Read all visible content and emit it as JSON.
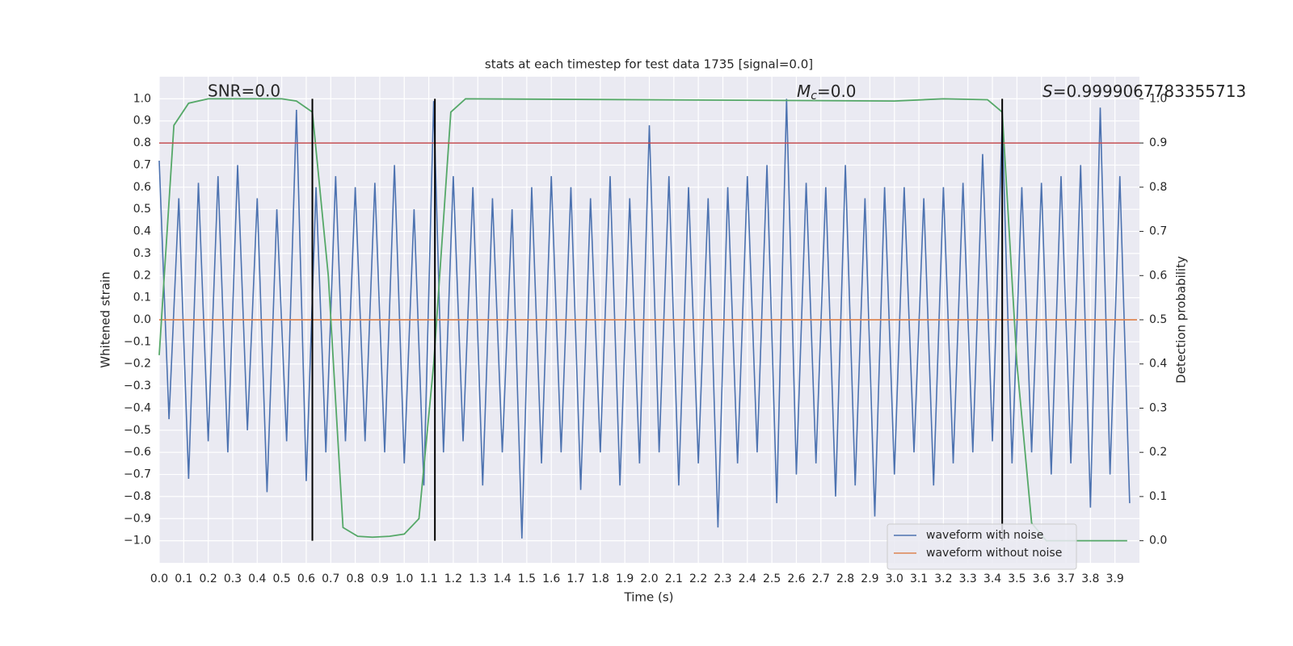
{
  "chart_data": {
    "type": "line",
    "title": "stats at each timestep for test data 1735 [signal=0.0]",
    "xlabel": "Time (s)",
    "ylabel": "Whitened strain",
    "y2label": "Detection probability",
    "xlim": [
      0,
      4
    ],
    "ylim": [
      -1.1,
      1.1
    ],
    "y2lim": [
      -0.05,
      1.05
    ],
    "xticks": [
      {
        "value": 0,
        "label": "0.0"
      },
      0.1,
      0.2,
      0.3,
      0.4,
      0.5,
      0.6,
      0.7,
      0.8,
      0.9,
      {
        "value": 1,
        "label": "1.0"
      },
      1.1,
      1.2,
      1.3,
      1.4,
      1.5,
      1.6,
      1.7,
      1.8,
      1.9,
      {
        "value": 2,
        "label": "2.0"
      },
      2.1,
      2.2,
      2.3,
      2.4,
      2.5,
      2.6,
      2.7,
      2.8,
      2.9,
      {
        "value": 3,
        "label": "3.0"
      },
      3.1,
      3.2,
      3.3,
      3.4,
      3.5,
      3.6,
      3.7,
      3.8,
      3.9
    ],
    "yticks": [
      {
        "value": -1,
        "label": "−1.0"
      },
      {
        "value": -0.9,
        "label": "−0.9"
      },
      {
        "value": -0.8,
        "label": "−0.8"
      },
      {
        "value": -0.7,
        "label": "−0.7"
      },
      {
        "value": -0.6,
        "label": "−0.6"
      },
      {
        "value": -0.5,
        "label": "−0.5"
      },
      {
        "value": -0.4,
        "label": "−0.4"
      },
      {
        "value": -0.3,
        "label": "−0.3"
      },
      {
        "value": -0.2,
        "label": "−0.2"
      },
      {
        "value": -0.1,
        "label": "−0.1"
      },
      {
        "value": 0,
        "label": "0.0"
      },
      0.1,
      0.2,
      0.3,
      0.4,
      0.5,
      0.6,
      0.7,
      0.8,
      0.9,
      {
        "value": 1,
        "label": "1.0"
      }
    ],
    "y2ticks": [
      {
        "value": 0,
        "label": "0.0"
      },
      0.1,
      0.2,
      0.3,
      0.4,
      0.5,
      0.6,
      0.7,
      0.8,
      0.9,
      {
        "value": 1,
        "label": "1.0"
      }
    ],
    "grid": true,
    "legend": "lower right",
    "series": [
      {
        "name": "waveform with noise",
        "color": "#4c72b0",
        "x": [
          0,
          0.04,
          0.08,
          0.12,
          0.16,
          0.2,
          0.24,
          0.28,
          0.32,
          0.36,
          0.4,
          0.44,
          0.48,
          0.52,
          0.56,
          0.6,
          0.64,
          0.68,
          0.72,
          0.76,
          0.8,
          0.84,
          0.88,
          0.92,
          0.96,
          1.0,
          1.04,
          1.08,
          1.12,
          1.16,
          1.2,
          1.24,
          1.28,
          1.32,
          1.36,
          1.4,
          1.44,
          1.48,
          1.52,
          1.56,
          1.6,
          1.64,
          1.68,
          1.72,
          1.76,
          1.8,
          1.84,
          1.88,
          1.92,
          1.96,
          2.0,
          2.04,
          2.08,
          2.12,
          2.16,
          2.2,
          2.24,
          2.28,
          2.32,
          2.36,
          2.4,
          2.44,
          2.48,
          2.52,
          2.56,
          2.6,
          2.64,
          2.68,
          2.72,
          2.76,
          2.8,
          2.84,
          2.88,
          2.92,
          2.96,
          3.0,
          3.04,
          3.08,
          3.12,
          3.16,
          3.2,
          3.24,
          3.28,
          3.32,
          3.36,
          3.4,
          3.44,
          3.48,
          3.52,
          3.56,
          3.6,
          3.64,
          3.68,
          3.72,
          3.76,
          3.8,
          3.84,
          3.88,
          3.92,
          3.96
        ],
        "values": [
          0.72,
          -0.45,
          0.55,
          -0.72,
          0.62,
          -0.55,
          0.65,
          -0.6,
          0.7,
          -0.5,
          0.55,
          -0.78,
          0.5,
          -0.55,
          0.95,
          -0.73,
          0.6,
          -0.6,
          0.65,
          -0.55,
          0.6,
          -0.55,
          0.62,
          -0.6,
          0.7,
          -0.65,
          0.5,
          -0.75,
          0.99,
          -0.6,
          0.65,
          -0.55,
          0.6,
          -0.75,
          0.55,
          -0.6,
          0.5,
          -0.99,
          0.6,
          -0.65,
          0.65,
          -0.6,
          0.6,
          -0.77,
          0.55,
          -0.6,
          0.65,
          -0.75,
          0.55,
          -0.65,
          0.88,
          -0.6,
          0.65,
          -0.75,
          0.6,
          -0.65,
          0.55,
          -0.94,
          0.6,
          -0.65,
          0.65,
          -0.6,
          0.7,
          -0.83,
          1.0,
          -0.7,
          0.62,
          -0.65,
          0.6,
          -0.8,
          0.7,
          -0.75,
          0.55,
          -0.89,
          0.6,
          -0.7,
          0.6,
          -0.6,
          0.55,
          -0.75,
          0.6,
          -0.65,
          0.62,
          -0.6,
          0.75,
          -0.55,
          0.9,
          -0.65,
          0.6,
          -0.6,
          0.62,
          -0.7,
          0.65,
          -0.65,
          0.7,
          -0.85,
          0.96,
          -0.7,
          0.65,
          -0.83
        ]
      },
      {
        "name": "waveform without noise",
        "color": "#dd8452",
        "x": [
          0,
          3.99
        ],
        "values": [
          0,
          0
        ]
      },
      {
        "color": "#55a868",
        "axis": "y2",
        "x": [
          0,
          0.06,
          0.12,
          0.2,
          0.5,
          0.56,
          0.625,
          0.69,
          0.75,
          0.81,
          0.87,
          0.94,
          1.0,
          1.06,
          1.12,
          1.19,
          1.25,
          3.0,
          3.2,
          3.38,
          3.44,
          3.5,
          3.56,
          3.62,
          3.95
        ],
        "values": [
          0.42,
          0.94,
          0.99,
          1.0,
          1.0,
          0.995,
          0.97,
          0.6,
          0.03,
          0.01,
          0.008,
          0.01,
          0.015,
          0.05,
          0.4,
          0.97,
          1.0,
          0.995,
          1.0,
          0.998,
          0.97,
          0.4,
          0.04,
          0.0,
          0.0
        ]
      }
    ],
    "threshold": {
      "value": 0.9,
      "axis": "y2",
      "color": "#c44e52"
    },
    "vlines": {
      "x": [
        0.625,
        1.125,
        3.44
      ],
      "ymin": -1,
      "ymax": 1,
      "color": "#000000"
    },
    "annotations": {
      "snr": "SNR=0.0",
      "mc": {
        "symbol": "M",
        "subscript": "c",
        "text": "=0.0"
      },
      "s": {
        "symbol": "S",
        "text": "=0.9999067783355713"
      }
    }
  }
}
